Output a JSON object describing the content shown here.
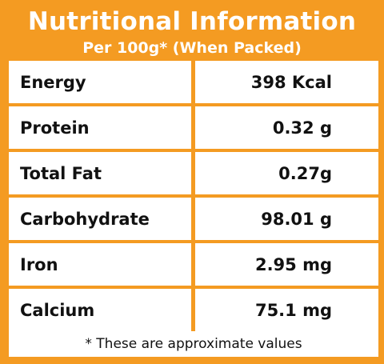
{
  "header": {
    "title": "Nutritional Information",
    "subtitle": "Per 100g* (When Packed)"
  },
  "nutrients": [
    {
      "name": "Energy",
      "value": "398 Kcal"
    },
    {
      "name": "Protein",
      "value": "0.32 g"
    },
    {
      "name": "Total Fat",
      "value": "0.27g"
    },
    {
      "name": "Carbohydrate",
      "value": "98.01 g"
    },
    {
      "name": "Iron",
      "value": "2.95 mg"
    },
    {
      "name": "Calcium",
      "value": "75.1 mg"
    }
  ],
  "footnote": "* These are approximate values",
  "colors": {
    "background": "#f49b22",
    "cell": "#ffffff",
    "title_text": "#ffffff",
    "body_text": "#111111"
  }
}
